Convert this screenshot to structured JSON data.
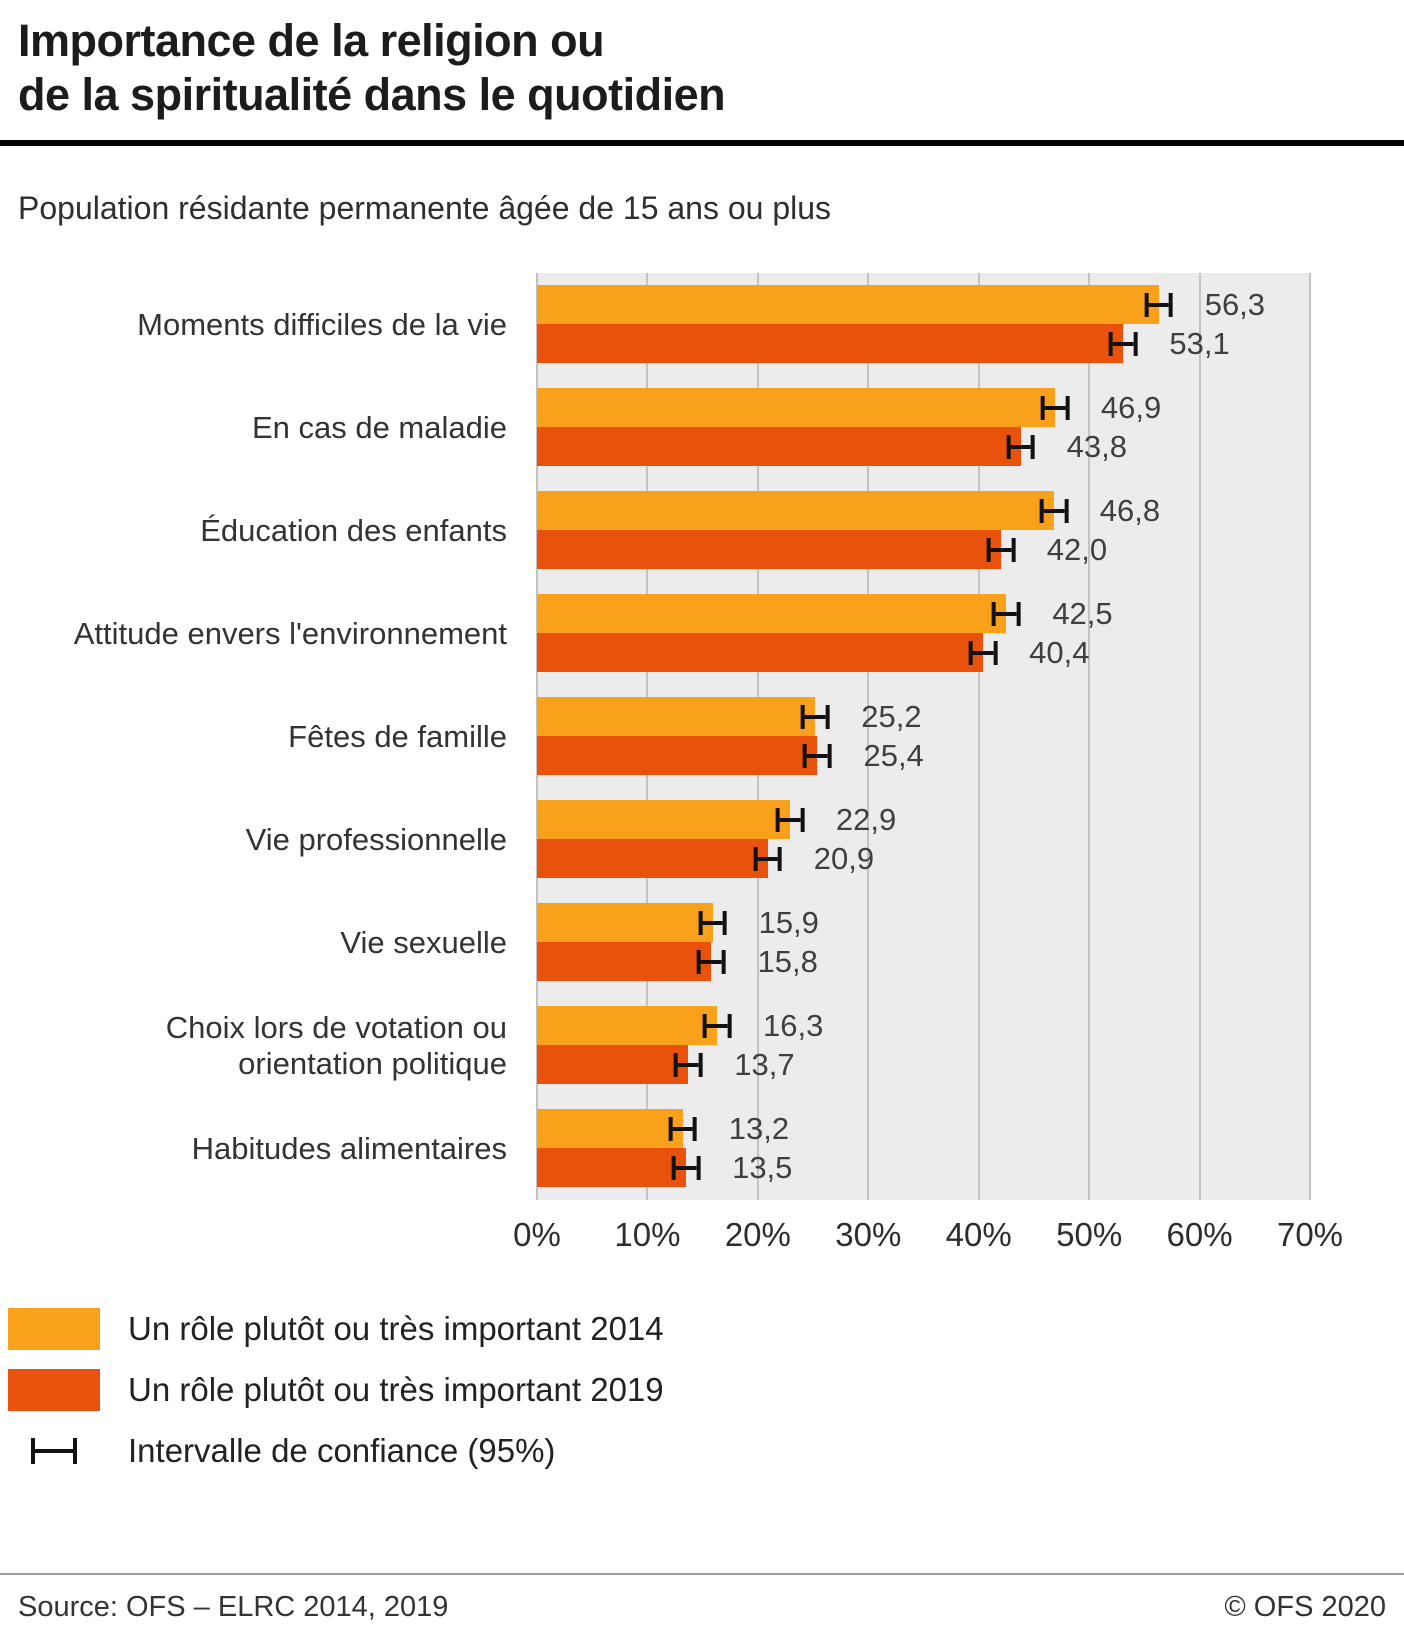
{
  "title": "Importance de la religion ou\nde la spiritualité dans le quotidien",
  "subtitle": "Population résidante permanente âgée de 15 ans ou plus",
  "chart_data": {
    "type": "bar",
    "orientation": "horizontal",
    "title": "Importance de la religion ou de la spiritualité dans le quotidien",
    "subtitle": "Population résidante permanente âgée de 15 ans ou plus",
    "categories": [
      "Moments difficiles de la vie",
      "En cas de maladie",
      "Éducation des enfants",
      "Attitude envers l'environnement",
      "Fêtes de famille",
      "Vie professionnelle",
      "Vie sexuelle",
      "Choix lors de votation ou\norientation politique",
      "Habitudes alimentaires"
    ],
    "series": [
      {
        "name": "Un rôle plutôt ou très important 2014",
        "color": "#F9A11B",
        "values": [
          56.3,
          46.9,
          46.8,
          42.5,
          25.2,
          22.9,
          15.9,
          16.3,
          13.2
        ],
        "labels": [
          "56,3",
          "46,9",
          "46,8",
          "42,5",
          "25,2",
          "22,9",
          "15,9",
          "16,3",
          "13,2"
        ]
      },
      {
        "name": "Un rôle plutôt ou très important 2019",
        "color": "#E8520C",
        "values": [
          53.1,
          43.8,
          42.0,
          40.4,
          25.4,
          20.9,
          15.8,
          13.7,
          13.5
        ],
        "labels": [
          "53,1",
          "43,8",
          "42,0",
          "40,4",
          "25,4",
          "20,9",
          "15,8",
          "13,7",
          "13,5"
        ]
      }
    ],
    "xlim": [
      0,
      70
    ],
    "x_tick_step": 10,
    "x_tick_labels": [
      "0%",
      "10%",
      "20%",
      "30%",
      "40%",
      "50%",
      "60%",
      "70%"
    ],
    "ci_halfwidth_pct": 1.3,
    "ci_legend_label": "Intervalle de confiance (95%)",
    "grid": true,
    "legend_position": "bottom-left",
    "plot_bg_color": "#ECECEC",
    "grid_color": "#C3C3C3"
  },
  "footer": {
    "source": "Source: OFS – ELRC 2014, 2019",
    "copyright": "© OFS 2020"
  }
}
